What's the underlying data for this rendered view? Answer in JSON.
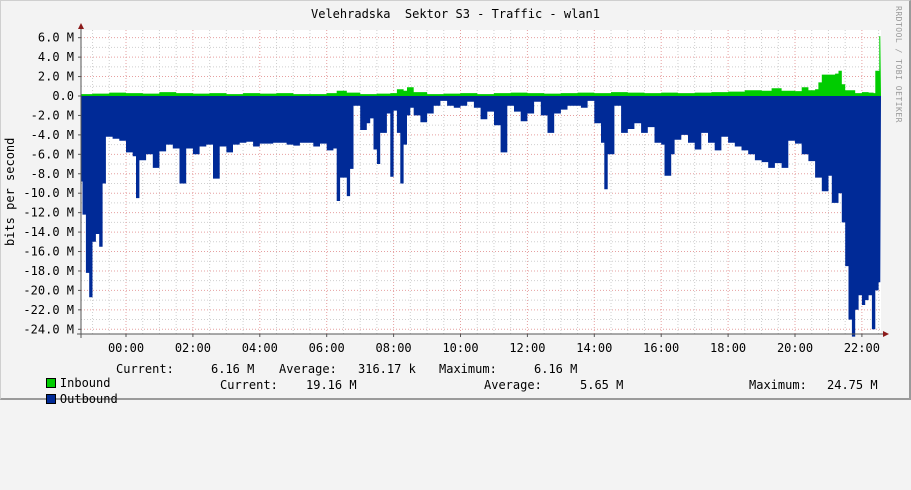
{
  "title": "Velehradska  Sektor S3 - Traffic - wlan1",
  "watermark": "RRDTOOL / TOBI OETIKER",
  "y_axis_label": "bits per second",
  "colors": {
    "background": "#f3f3f3",
    "canvas": "#ffffff",
    "inbound": "#00cc00",
    "outbound": "#002a97",
    "major_grid": "#e6a0a0",
    "minor_grid": "#cfcfcf",
    "axis": "#555555",
    "arrow": "#8b1a1a"
  },
  "legend": {
    "inbound": {
      "label": "Inbound",
      "current_label": "Current:",
      "current": "6.16 M",
      "average_label": "Average:",
      "average": "316.17 k",
      "maximum_label": "Maximum:",
      "maximum": "6.16 M"
    },
    "outbound": {
      "label": "Outbound",
      "current_label": "Current:",
      "current": "19.16 M",
      "average_label": "Average:",
      "average": "5.65 M",
      "maximum_label": "Maximum:",
      "maximum": "24.75 M"
    }
  },
  "chart_data": {
    "type": "area",
    "title": "Velehradska  Sektor S3 - Traffic - wlan1",
    "xlabel": "",
    "ylabel": "bits per second",
    "ylim": [
      -24.5,
      6.5
    ],
    "y_ticks": [
      "6.0 M",
      "4.0 M",
      "2.0 M",
      "0.0",
      "-2.0 M",
      "-4.0 M",
      "-6.0 M",
      "-8.0 M",
      "-10.0 M",
      "-12.0 M",
      "-14.0 M",
      "-16.0 M",
      "-18.0 M",
      "-20.0 M",
      "-22.0 M",
      "-24.0 M"
    ],
    "y_tick_values": [
      6,
      4,
      2,
      0,
      -2,
      -4,
      -6,
      -8,
      -10,
      -12,
      -14,
      -16,
      -18,
      -20,
      -22,
      -24
    ],
    "x_ticks": [
      "00:00",
      "02:00",
      "04:00",
      "06:00",
      "08:00",
      "10:00",
      "12:00",
      "14:00",
      "16:00",
      "18:00",
      "20:00",
      "22:00"
    ],
    "x_tick_hours": [
      0,
      2,
      4,
      6,
      8,
      10,
      12,
      14,
      16,
      18,
      20,
      22
    ],
    "x_range_hours": [
      -1.35,
      22.55
    ],
    "grid": true,
    "legend_position": "bottom",
    "series": [
      {
        "name": "Inbound",
        "color": "#00cc00",
        "sign": 1,
        "unit": "Mbps",
        "points": [
          [
            -1.35,
            0.2
          ],
          [
            -1.0,
            0.25
          ],
          [
            -0.5,
            0.35
          ],
          [
            0.0,
            0.3
          ],
          [
            0.5,
            0.25
          ],
          [
            1.0,
            0.4
          ],
          [
            1.5,
            0.3
          ],
          [
            2.0,
            0.25
          ],
          [
            2.5,
            0.3
          ],
          [
            3.0,
            0.2
          ],
          [
            3.5,
            0.3
          ],
          [
            4.0,
            0.25
          ],
          [
            4.5,
            0.3
          ],
          [
            5.0,
            0.2
          ],
          [
            5.5,
            0.2
          ],
          [
            6.0,
            0.3
          ],
          [
            6.3,
            0.55
          ],
          [
            6.6,
            0.35
          ],
          [
            7.0,
            0.2
          ],
          [
            7.5,
            0.25
          ],
          [
            7.9,
            0.3
          ],
          [
            8.1,
            0.7
          ],
          [
            8.3,
            0.55
          ],
          [
            8.4,
            0.9
          ],
          [
            8.6,
            0.4
          ],
          [
            9.0,
            0.2
          ],
          [
            9.5,
            0.25
          ],
          [
            10.0,
            0.3
          ],
          [
            10.5,
            0.2
          ],
          [
            11.0,
            0.3
          ],
          [
            11.5,
            0.35
          ],
          [
            12.0,
            0.3
          ],
          [
            12.5,
            0.25
          ],
          [
            13.0,
            0.3
          ],
          [
            13.5,
            0.35
          ],
          [
            14.0,
            0.3
          ],
          [
            14.5,
            0.4
          ],
          [
            15.0,
            0.35
          ],
          [
            15.5,
            0.3
          ],
          [
            16.0,
            0.35
          ],
          [
            16.5,
            0.3
          ],
          [
            17.0,
            0.35
          ],
          [
            17.5,
            0.4
          ],
          [
            18.0,
            0.45
          ],
          [
            18.5,
            0.6
          ],
          [
            19.0,
            0.55
          ],
          [
            19.3,
            0.8
          ],
          [
            19.6,
            0.55
          ],
          [
            20.0,
            0.5
          ],
          [
            20.2,
            0.9
          ],
          [
            20.4,
            0.6
          ],
          [
            20.6,
            0.7
          ],
          [
            20.7,
            1.4
          ],
          [
            20.8,
            2.2
          ],
          [
            21.0,
            2.2
          ],
          [
            21.2,
            2.3
          ],
          [
            21.3,
            2.6
          ],
          [
            21.4,
            1.2
          ],
          [
            21.5,
            0.6
          ],
          [
            21.8,
            0.3
          ],
          [
            22.0,
            0.4
          ],
          [
            22.2,
            0.35
          ],
          [
            22.35,
            0.3
          ],
          [
            22.4,
            2.6
          ],
          [
            22.48,
            2.6
          ],
          [
            22.52,
            6.16
          ],
          [
            22.55,
            6.16
          ]
        ]
      },
      {
        "name": "Outbound",
        "color": "#002a97",
        "sign": -1,
        "unit": "Mbps",
        "points": [
          [
            -1.35,
            -8.8
          ],
          [
            -1.3,
            -12.2
          ],
          [
            -1.2,
            -18.2
          ],
          [
            -1.1,
            -20.7
          ],
          [
            -1.0,
            -15.0
          ],
          [
            -0.9,
            -14.2
          ],
          [
            -0.8,
            -15.5
          ],
          [
            -0.7,
            -9.0
          ],
          [
            -0.6,
            -4.2
          ],
          [
            -0.4,
            -4.4
          ],
          [
            -0.2,
            -4.6
          ],
          [
            0.0,
            -5.8
          ],
          [
            0.2,
            -6.2
          ],
          [
            0.3,
            -10.5
          ],
          [
            0.4,
            -6.6
          ],
          [
            0.6,
            -6.0
          ],
          [
            0.8,
            -7.4
          ],
          [
            1.0,
            -5.7
          ],
          [
            1.2,
            -5.0
          ],
          [
            1.4,
            -5.4
          ],
          [
            1.6,
            -9.0
          ],
          [
            1.8,
            -5.4
          ],
          [
            2.0,
            -6.0
          ],
          [
            2.2,
            -5.2
          ],
          [
            2.4,
            -5.0
          ],
          [
            2.6,
            -8.5
          ],
          [
            2.8,
            -5.2
          ],
          [
            3.0,
            -5.8
          ],
          [
            3.2,
            -5.0
          ],
          [
            3.4,
            -4.8
          ],
          [
            3.6,
            -4.7
          ],
          [
            3.8,
            -5.2
          ],
          [
            4.0,
            -4.9
          ],
          [
            4.4,
            -4.8
          ],
          [
            4.8,
            -5.0
          ],
          [
            5.0,
            -5.1
          ],
          [
            5.2,
            -4.8
          ],
          [
            5.6,
            -5.2
          ],
          [
            5.8,
            -4.9
          ],
          [
            6.0,
            -5.6
          ],
          [
            6.2,
            -5.4
          ],
          [
            6.3,
            -10.8
          ],
          [
            6.4,
            -8.4
          ],
          [
            6.6,
            -10.3
          ],
          [
            6.7,
            -7.5
          ],
          [
            6.8,
            -1.0
          ],
          [
            7.0,
            -3.5
          ],
          [
            7.2,
            -2.8
          ],
          [
            7.3,
            -2.3
          ],
          [
            7.4,
            -5.5
          ],
          [
            7.5,
            -7.0
          ],
          [
            7.6,
            -3.8
          ],
          [
            7.8,
            -1.8
          ],
          [
            7.9,
            -8.3
          ],
          [
            8.0,
            -1.5
          ],
          [
            8.1,
            -3.8
          ],
          [
            8.2,
            -9.0
          ],
          [
            8.3,
            -5.0
          ],
          [
            8.4,
            -2.0
          ],
          [
            8.5,
            -1.2
          ],
          [
            8.6,
            -2.0
          ],
          [
            8.8,
            -2.7
          ],
          [
            9.0,
            -1.8
          ],
          [
            9.2,
            -1.0
          ],
          [
            9.4,
            -0.5
          ],
          [
            9.6,
            -1.0
          ],
          [
            9.8,
            -1.2
          ],
          [
            10.0,
            -1.0
          ],
          [
            10.2,
            -0.6
          ],
          [
            10.4,
            -1.2
          ],
          [
            10.6,
            -2.4
          ],
          [
            10.8,
            -1.6
          ],
          [
            11.0,
            -3.0
          ],
          [
            11.2,
            -5.8
          ],
          [
            11.4,
            -1.0
          ],
          [
            11.6,
            -1.6
          ],
          [
            11.8,
            -2.6
          ],
          [
            12.0,
            -1.8
          ],
          [
            12.2,
            -0.6
          ],
          [
            12.4,
            -2.0
          ],
          [
            12.6,
            -3.8
          ],
          [
            12.8,
            -1.8
          ],
          [
            13.0,
            -1.4
          ],
          [
            13.2,
            -1.0
          ],
          [
            13.4,
            -1.0
          ],
          [
            13.6,
            -1.2
          ],
          [
            13.8,
            -0.5
          ],
          [
            14.0,
            -2.8
          ],
          [
            14.2,
            -4.8
          ],
          [
            14.3,
            -9.6
          ],
          [
            14.4,
            -6.0
          ],
          [
            14.6,
            -1.0
          ],
          [
            14.8,
            -3.8
          ],
          [
            15.0,
            -3.4
          ],
          [
            15.2,
            -2.8
          ],
          [
            15.4,
            -3.8
          ],
          [
            15.6,
            -3.2
          ],
          [
            15.8,
            -4.8
          ],
          [
            16.0,
            -5.0
          ],
          [
            16.1,
            -8.2
          ],
          [
            16.3,
            -6.0
          ],
          [
            16.4,
            -4.5
          ],
          [
            16.6,
            -4.0
          ],
          [
            16.8,
            -4.8
          ],
          [
            17.0,
            -5.5
          ],
          [
            17.2,
            -3.8
          ],
          [
            17.4,
            -4.8
          ],
          [
            17.6,
            -5.6
          ],
          [
            17.8,
            -4.2
          ],
          [
            18.0,
            -4.8
          ],
          [
            18.2,
            -5.2
          ],
          [
            18.4,
            -5.6
          ],
          [
            18.6,
            -6.0
          ],
          [
            18.8,
            -6.6
          ],
          [
            19.0,
            -6.8
          ],
          [
            19.2,
            -7.4
          ],
          [
            19.4,
            -6.9
          ],
          [
            19.6,
            -7.4
          ],
          [
            19.8,
            -4.6
          ],
          [
            20.0,
            -4.9
          ],
          [
            20.2,
            -6.0
          ],
          [
            20.4,
            -6.7
          ],
          [
            20.6,
            -8.4
          ],
          [
            20.8,
            -9.8
          ],
          [
            21.0,
            -8.2
          ],
          [
            21.1,
            -11.0
          ],
          [
            21.3,
            -10.0
          ],
          [
            21.4,
            -13.0
          ],
          [
            21.5,
            -17.5
          ],
          [
            21.6,
            -23.0
          ],
          [
            21.7,
            -24.75
          ],
          [
            21.8,
            -22.0
          ],
          [
            21.9,
            -20.5
          ],
          [
            22.0,
            -21.5
          ],
          [
            22.1,
            -21.0
          ],
          [
            22.2,
            -20.5
          ],
          [
            22.3,
            -24.0
          ],
          [
            22.4,
            -20.0
          ],
          [
            22.5,
            -19.16
          ],
          [
            22.55,
            -19.16
          ]
        ]
      }
    ]
  }
}
